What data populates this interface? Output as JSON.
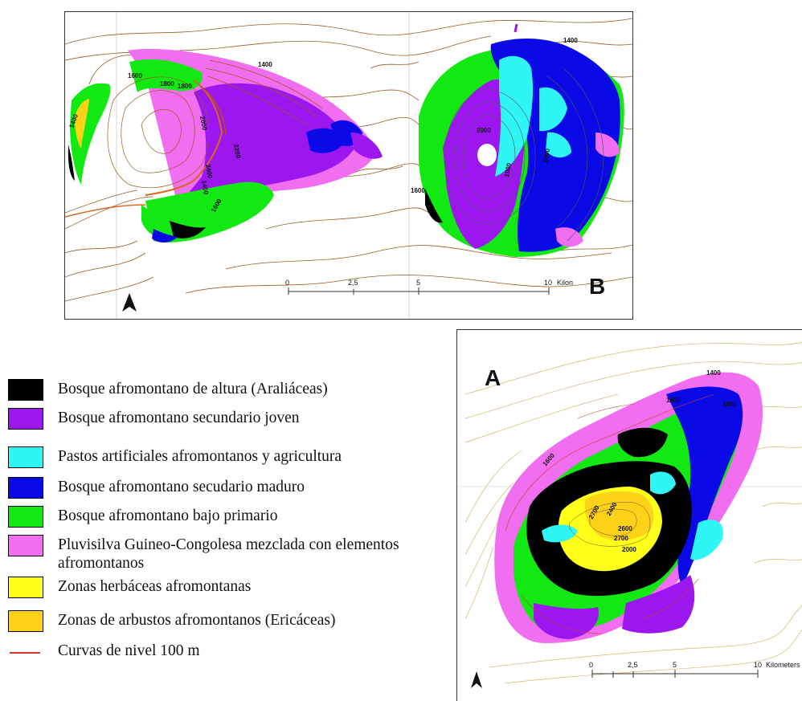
{
  "panels": {
    "b": {
      "letter": "B",
      "scale_ticks": [
        "0",
        "2,5",
        "5",
        "10"
      ],
      "scale_unit": "Kilon",
      "contour_labels": [
        "1400",
        "1400",
        "1600",
        "1800",
        "1800",
        "2000",
        "2200",
        "2400",
        "1600",
        "1400",
        "2000",
        "1900",
        "1800",
        "1600",
        "1400"
      ]
    },
    "a": {
      "letter": "A",
      "scale_ticks": [
        "0",
        "2,5",
        "5",
        "10"
      ],
      "scale_unit": "Kilometers",
      "contour_labels": [
        "1400",
        "1600",
        "1800",
        "1600",
        "2700",
        "2400",
        "2600",
        "2700",
        "2000"
      ]
    }
  },
  "legend": [
    {
      "label": "Bosque afromontano de altura (Araliáceas)",
      "color": "#000000"
    },
    {
      "label": "Bosque afromontano secundario joven",
      "color": "#9b16ef"
    },
    {
      "label": "Pastos artificiales afromontanos y agricultura",
      "color": "#2ff5f5"
    },
    {
      "label": "Bosque afromontano secudario maduro",
      "color": "#0a0ae6"
    },
    {
      "label": "Bosque afromontano bajo primario",
      "color": "#12e812"
    },
    {
      "label": "Pluvisilva Guineo-Congolesa mezclada con elementos afromontanos",
      "color": "#f26ef0"
    },
    {
      "label": "Zonas herbáceas afromontanas",
      "color": "#ffff1a"
    },
    {
      "label": "Zonas de arbustos afromontanos (Ericáceas)",
      "color": "#ffd21a"
    },
    {
      "label": "Curvas de nivel 100 m",
      "color": "#d43a2a",
      "type": "line"
    }
  ],
  "colors": {
    "contour_brown": "#9c5a1e",
    "contour_tan": "#d9b46a",
    "north_arrow": "#111111"
  }
}
